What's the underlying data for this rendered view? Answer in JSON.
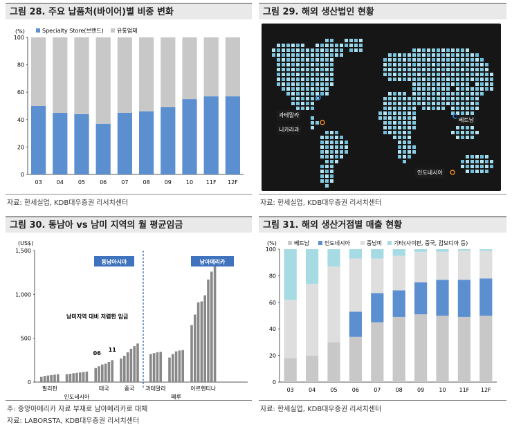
{
  "panels": {
    "p28": {
      "title": "그림 28. 주요 납품처(바이어)별 비중 변화",
      "source": "자료: 한세실업, KDB대우증권 리서치센터"
    },
    "p29": {
      "title": "그림 29. 해외 생산법인 현황",
      "source": "자료: 한세실업, KDB대우증권 리서치센터",
      "map_labels": [
        "과테말라",
        "니카라과",
        "베트남",
        "인도네시아"
      ]
    },
    "p30": {
      "title": "그림 30. 동남아 vs 남미 지역의 월 평균임금",
      "note": "주: 중앙아메리카 자료 부재로 남아메리카로 대체",
      "source": "자료: LABORSTA, KDB대우증권 리서치센터"
    },
    "p31": {
      "title": "그림 31. 해외 생산거점별 매출 현황",
      "source": "자료: 한세실업, KDB대우증권 리서치센터"
    }
  },
  "colors": {
    "blue": "#5b8fd0",
    "gray": "#c8c8c8",
    "lightgray": "#dedede",
    "cyan": "#a6dbe3",
    "bar30": "#888888",
    "sea": "#1a1a1a"
  },
  "chart_data": [
    {
      "id": "chart28",
      "type": "bar",
      "stacked": true,
      "unit": "(%)",
      "categories": [
        "03",
        "04",
        "05",
        "06",
        "07",
        "08",
        "09",
        "10",
        "11F",
        "12F"
      ],
      "series": [
        {
          "name": "Specialty Store(브랜드)",
          "values": [
            50,
            45,
            44,
            37,
            45,
            46,
            49,
            55,
            57,
            57
          ]
        },
        {
          "name": "유통업체",
          "values": [
            50,
            55,
            56,
            63,
            55,
            54,
            51,
            45,
            43,
            43
          ]
        }
      ],
      "ylim": [
        0,
        100
      ],
      "yticks": [
        0,
        20,
        40,
        60,
        80,
        100
      ]
    },
    {
      "id": "chart30",
      "type": "bar",
      "unit": "(US$)",
      "ylim": [
        0,
        1500
      ],
      "yticks": [
        0,
        500,
        1000,
        1500
      ],
      "ytick_labels": [
        "0",
        "500",
        "1,000",
        "1,500"
      ],
      "regions": [
        "동남아시아",
        "남아메리카"
      ],
      "annotation": "남미지역 대비 저렴한 임금",
      "year_labels": [
        "06",
        "11"
      ],
      "groups": [
        {
          "name": "필리핀",
          "values": [
            60,
            70,
            75,
            80,
            85,
            90
          ]
        },
        {
          "name": "인도네시아",
          "values": [
            90,
            95,
            100,
            105,
            110,
            115,
            120
          ]
        },
        {
          "name": "태국",
          "values": [
            160,
            180,
            200,
            210,
            230,
            250
          ]
        },
        {
          "name": "중국",
          "values": [
            270,
            300,
            340,
            380,
            410,
            440
          ]
        },
        {
          "name": "과테말라",
          "values": [
            320,
            330,
            340,
            345
          ]
        },
        {
          "name": "페루",
          "values": [
            280,
            320,
            350,
            360,
            365
          ]
        },
        {
          "name": "아르헨티나",
          "values": [
            650,
            770,
            910,
            920,
            990,
            1170,
            1260,
            1340
          ]
        }
      ]
    },
    {
      "id": "chart31",
      "type": "bar",
      "stacked": true,
      "unit": "(%)",
      "categories": [
        "03",
        "04",
        "05",
        "06",
        "07",
        "08",
        "09",
        "10",
        "11F",
        "12F"
      ],
      "series": [
        {
          "name": "베트남",
          "values": [
            18,
            20,
            30,
            34,
            45,
            49,
            51,
            50,
            49,
            50
          ]
        },
        {
          "name": "인도네시아",
          "values": [
            0,
            0,
            0,
            19,
            22,
            20,
            24,
            27,
            28,
            28
          ]
        },
        {
          "name": "중남미",
          "values": [
            44,
            54,
            57,
            40,
            26,
            26,
            23,
            21,
            22,
            21
          ]
        },
        {
          "name": "기타(사이판, 중국, 캄보디아 등)",
          "values": [
            38,
            26,
            13,
            7,
            7,
            5,
            2,
            2,
            1,
            1
          ]
        }
      ],
      "ylim": [
        0,
        100
      ],
      "yticks": [
        0,
        20,
        40,
        60,
        80,
        100
      ]
    }
  ]
}
